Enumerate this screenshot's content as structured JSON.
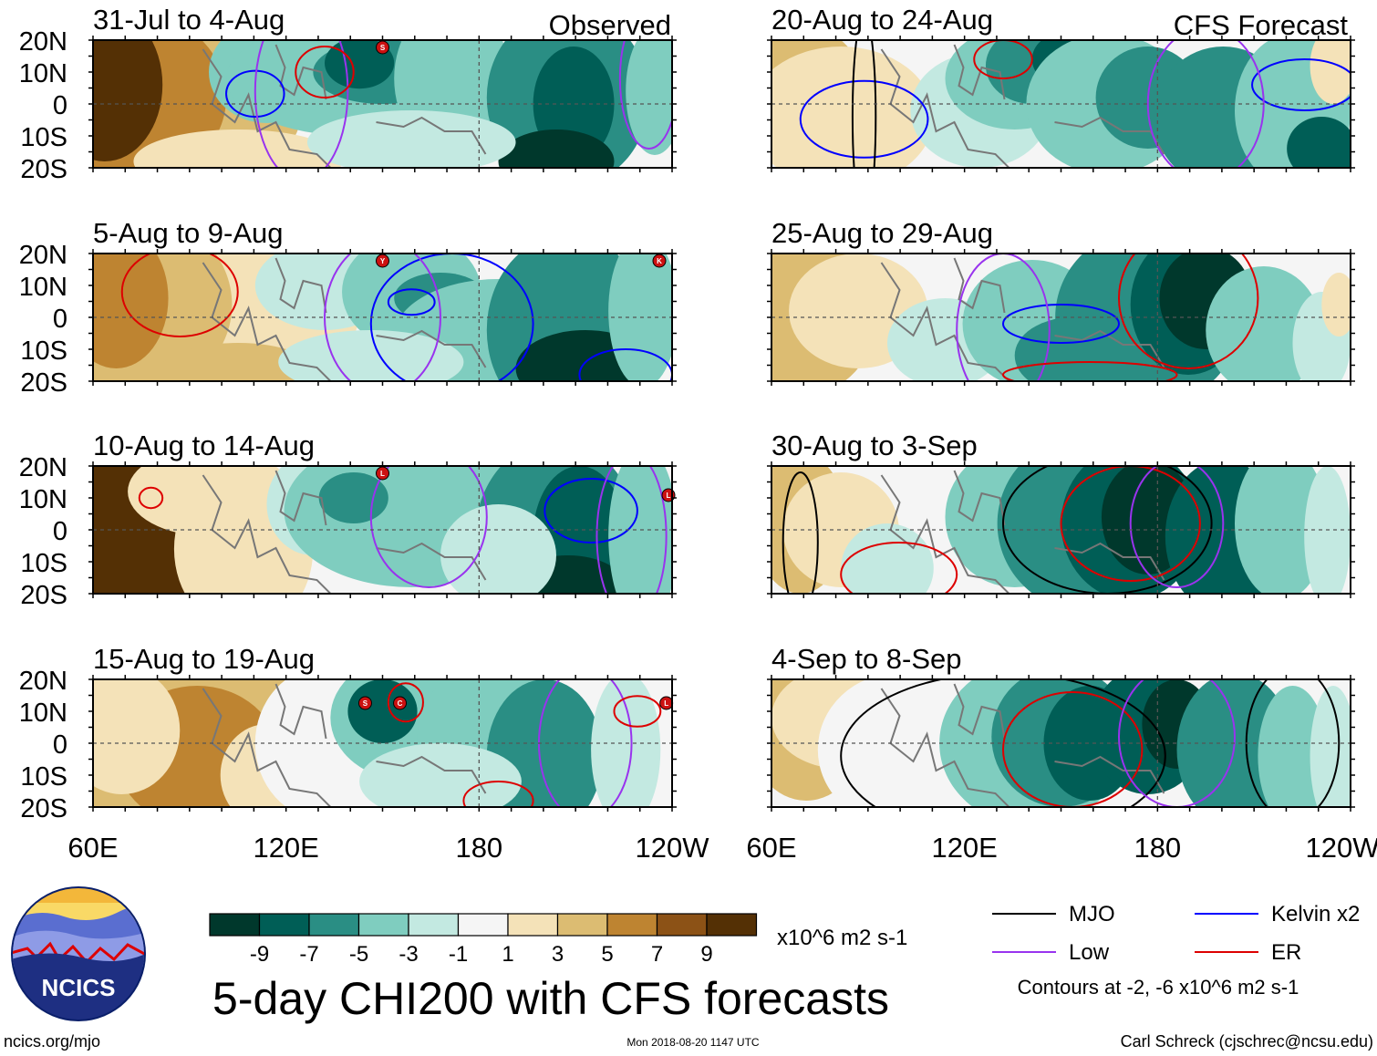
{
  "figure": {
    "title": "5-day CHI200 with CFS forecasts",
    "observed_label": "Observed",
    "forecast_label": "CFS Forecast",
    "website": "ncics.org/mjo",
    "timestamp": "Mon 2018-08-20 1147 UTC",
    "author": "Carl Schreck (cjschrec@ncsu.edu)",
    "logo_text": "NCICS"
  },
  "axes": {
    "lat_labels": [
      "20N",
      "10N",
      "0",
      "10S",
      "20S"
    ],
    "lon_labels": [
      "60E",
      "120E",
      "180",
      "120W"
    ]
  },
  "panels": [
    {
      "period": "31-Jul to 4-Aug",
      "type": "observed",
      "storms": [
        "S"
      ]
    },
    {
      "period": "5-Aug to 9-Aug",
      "type": "observed",
      "storms": [
        "Y",
        "K"
      ]
    },
    {
      "period": "10-Aug to 14-Aug",
      "type": "observed",
      "storms": [
        "L",
        "L"
      ]
    },
    {
      "period": "15-Aug to 19-Aug",
      "type": "observed",
      "storms": [
        "S",
        "C",
        "L"
      ]
    },
    {
      "period": "20-Aug to 24-Aug",
      "type": "forecast",
      "storms": []
    },
    {
      "period": "25-Aug to 29-Aug",
      "type": "forecast",
      "storms": []
    },
    {
      "period": "30-Aug to 3-Sep",
      "type": "forecast",
      "storms": []
    },
    {
      "period": "4-Sep to 8-Sep",
      "type": "forecast",
      "storms": []
    }
  ],
  "colorbar": {
    "units": "x10^6 m2 s-1",
    "tick_labels": [
      "-9",
      "-7",
      "-5",
      "-3",
      "-1",
      "1",
      "3",
      "5",
      "7",
      "9"
    ],
    "colors": [
      "#00382c",
      "#005e56",
      "#2a8e84",
      "#7fcdbf",
      "#c3e9e1",
      "#f5f5f5",
      "#f4e2b8",
      "#dcbc72",
      "#be8431",
      "#8c5216",
      "#543005"
    ]
  },
  "legend": {
    "items": [
      {
        "label": "MJO",
        "color": "#000000"
      },
      {
        "label": "Kelvin x2",
        "color": "#0000ff"
      },
      {
        "label": "Low",
        "color": "#9933ee"
      },
      {
        "label": "ER",
        "color": "#dd0000"
      }
    ],
    "note": "Contours at -2, -6 x10^6 m2 s-1"
  }
}
